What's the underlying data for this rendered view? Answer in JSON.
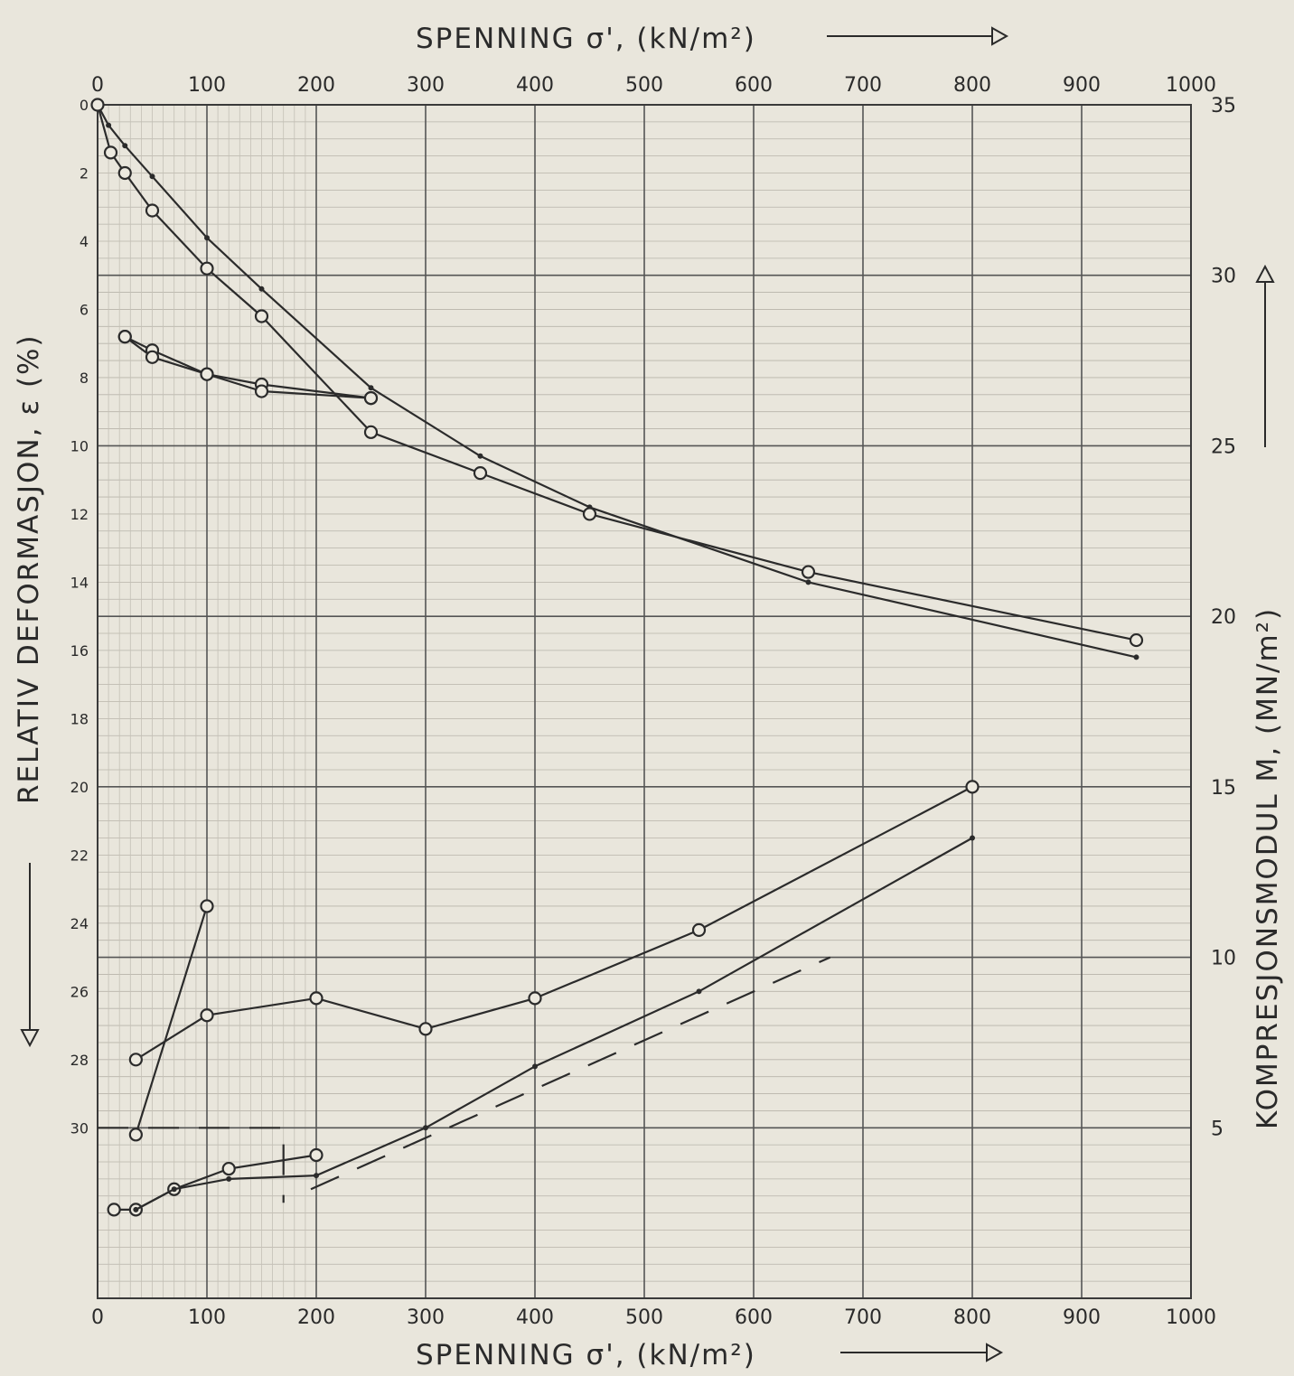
{
  "chart_data": {
    "type": "line",
    "title_top": "SPENNING σ', (kN/m²)",
    "xlabel": "SPENNING σ', (kN/m²)",
    "ylabel_left": "RELATIV DEFORMASJON, ε (%)",
    "ylabel_right": "KOMPRESJONSMODUL M, (MN/m²)",
    "xlim": [
      0,
      1000
    ],
    "ylim_left": [
      0,
      30
    ],
    "ylim_right": [
      0,
      35
    ],
    "grid": true,
    "x_ticks": [
      "0",
      "100",
      "200",
      "300",
      "400",
      "500",
      "600",
      "700",
      "800",
      "900",
      "1000"
    ],
    "y_left_ticks": [
      "0",
      "2",
      "4",
      "6",
      "8",
      "10",
      "12",
      "14",
      "16",
      "18",
      "20",
      "22",
      "24",
      "26",
      "28",
      "30"
    ],
    "y_right_ticks": [
      "35",
      "30",
      "25",
      "20",
      "15",
      "10",
      "5"
    ],
    "series": [
      {
        "axis": "left",
        "marker": "dot",
        "style": "solid",
        "points": [
          [
            0,
            0
          ],
          [
            10,
            0.6
          ],
          [
            25,
            1.2
          ],
          [
            50,
            2.1
          ],
          [
            100,
            3.9
          ],
          [
            150,
            5.4
          ],
          [
            250,
            8.3
          ],
          [
            350,
            10.3
          ],
          [
            450,
            11.8
          ],
          [
            650,
            14.0
          ],
          [
            950,
            16.2
          ]
        ]
      },
      {
        "axis": "left",
        "marker": "circle",
        "style": "solid",
        "points": [
          [
            0,
            0
          ],
          [
            12,
            1.4
          ],
          [
            25,
            2.0
          ],
          [
            50,
            3.1
          ],
          [
            100,
            4.8
          ],
          [
            150,
            6.2
          ],
          [
            250,
            9.6
          ],
          [
            350,
            10.8
          ],
          [
            450,
            12.0
          ],
          [
            650,
            13.7
          ],
          [
            950,
            15.7
          ]
        ]
      },
      {
        "axis": "left",
        "marker": "circle",
        "style": "solid",
        "points": [
          [
            25,
            6.8
          ],
          [
            50,
            7.2
          ],
          [
            100,
            7.9
          ],
          [
            150,
            8.2
          ],
          [
            250,
            8.6
          ]
        ]
      },
      {
        "axis": "left",
        "marker": "circle",
        "style": "solid",
        "points": [
          [
            25,
            6.8
          ],
          [
            50,
            7.4
          ],
          [
            100,
            7.9
          ],
          [
            150,
            8.4
          ],
          [
            250,
            8.6
          ]
        ]
      },
      {
        "axis": "right",
        "marker": "circle",
        "style": "solid",
        "points": [
          [
            35,
            7.0
          ],
          [
            100,
            8.3
          ],
          [
            200,
            8.8
          ],
          [
            300,
            7.9
          ],
          [
            400,
            8.8
          ],
          [
            550,
            10.8
          ],
          [
            800,
            15.0
          ]
        ]
      },
      {
        "axis": "right",
        "marker": "circle",
        "style": "solid",
        "points": [
          [
            35,
            4.8
          ],
          [
            100,
            11.5
          ]
        ]
      },
      {
        "axis": "right",
        "marker": "circle",
        "style": "solid",
        "points": [
          [
            15,
            2.6
          ],
          [
            35,
            2.6
          ],
          [
            70,
            3.2
          ],
          [
            120,
            3.8
          ],
          [
            200,
            4.2
          ]
        ]
      },
      {
        "axis": "right",
        "marker": "dot",
        "style": "solid",
        "points": [
          [
            35,
            2.6
          ],
          [
            70,
            3.2
          ],
          [
            120,
            3.5
          ],
          [
            200,
            3.6
          ],
          [
            300,
            5.0
          ],
          [
            400,
            6.8
          ],
          [
            550,
            9.0
          ],
          [
            800,
            13.5
          ]
        ]
      },
      {
        "axis": "right",
        "marker": "none",
        "style": "dashed",
        "points": [
          [
            195,
            3.2
          ],
          [
            670,
            10.0
          ]
        ]
      },
      {
        "axis": "right",
        "marker": "none",
        "style": "dashed",
        "points": [
          [
            0,
            5.0
          ],
          [
            170,
            5.0
          ],
          [
            170,
            2.8
          ]
        ]
      }
    ]
  }
}
